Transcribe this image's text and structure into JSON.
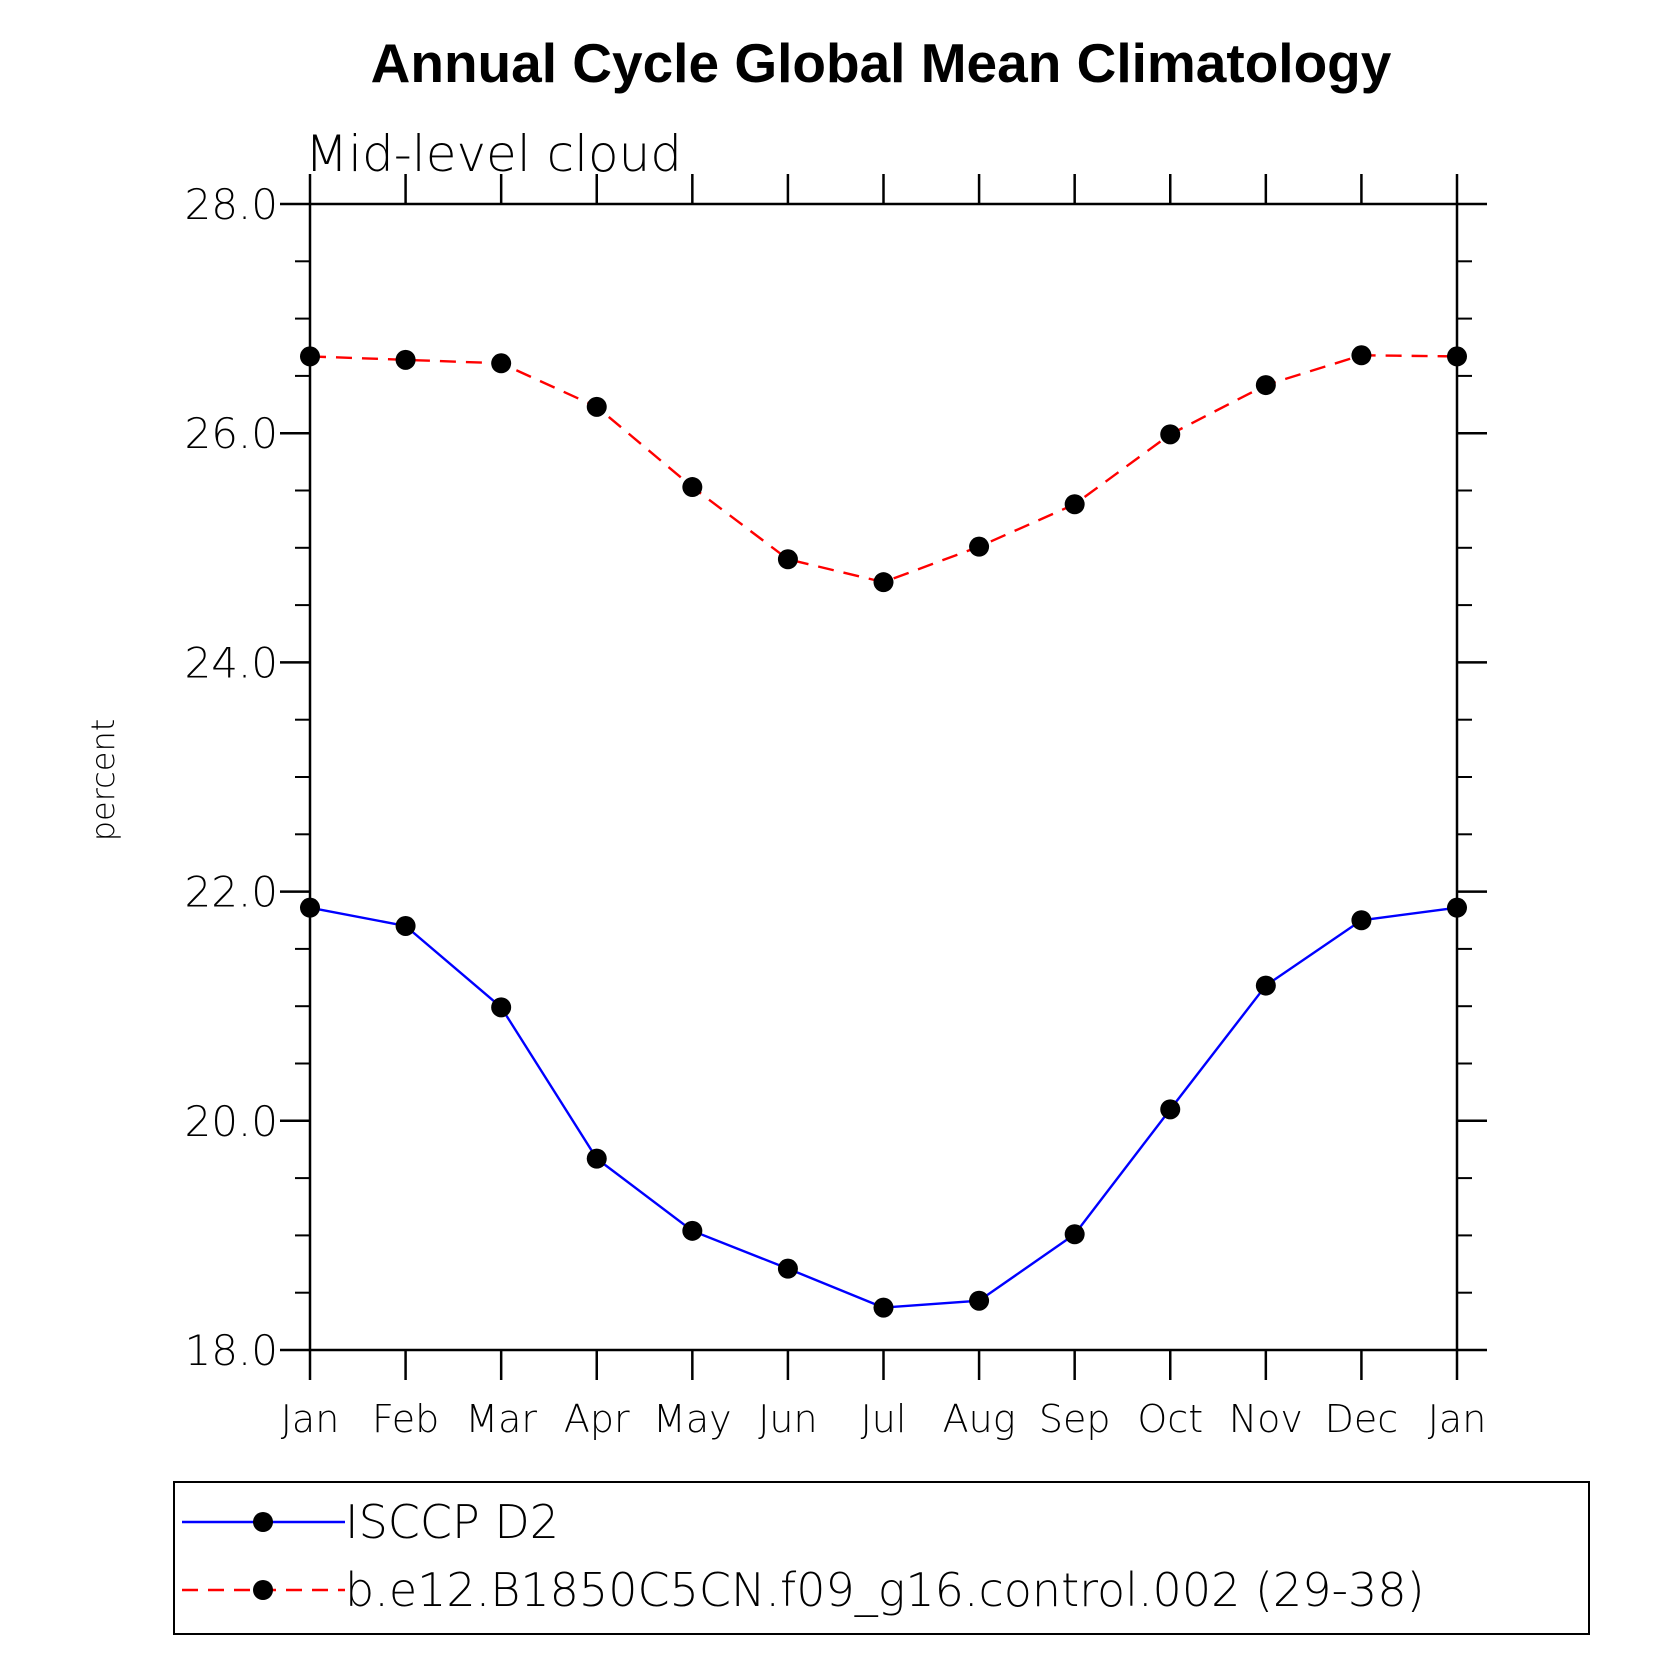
{
  "chart_data": {
    "type": "line",
    "title": "Annual Cycle Global Mean Climatology",
    "subtitle": "Mid-level cloud",
    "xlabel": "",
    "ylabel": "percent",
    "ylim": [
      18.0,
      28.0
    ],
    "yticks": [
      "18.0",
      "20.0",
      "22.0",
      "24.0",
      "26.0",
      "28.0"
    ],
    "categories": [
      "Jan",
      "Feb",
      "Mar",
      "Apr",
      "May",
      "Jun",
      "Jul",
      "Aug",
      "Sep",
      "Oct",
      "Nov",
      "Dec",
      "Jan"
    ],
    "grid": false,
    "legend_position": "bottom",
    "series": [
      {
        "name": "ISCCP D2",
        "color": "#0000ff",
        "dashed": false,
        "marker": "filled-circle",
        "values": [
          21.86,
          21.7,
          20.99,
          19.67,
          19.04,
          18.71,
          18.37,
          18.43,
          19.01,
          20.1,
          21.18,
          21.75,
          21.86
        ]
      },
      {
        "name": "b.e12.B1850C5CN.f09_g16.control.002 (29-38)",
        "color": "#ff0000",
        "dashed": true,
        "marker": "filled-circle",
        "values": [
          26.67,
          26.64,
          26.61,
          26.23,
          25.53,
          24.9,
          24.7,
          25.01,
          25.38,
          25.99,
          26.42,
          26.68,
          26.67
        ]
      }
    ]
  }
}
